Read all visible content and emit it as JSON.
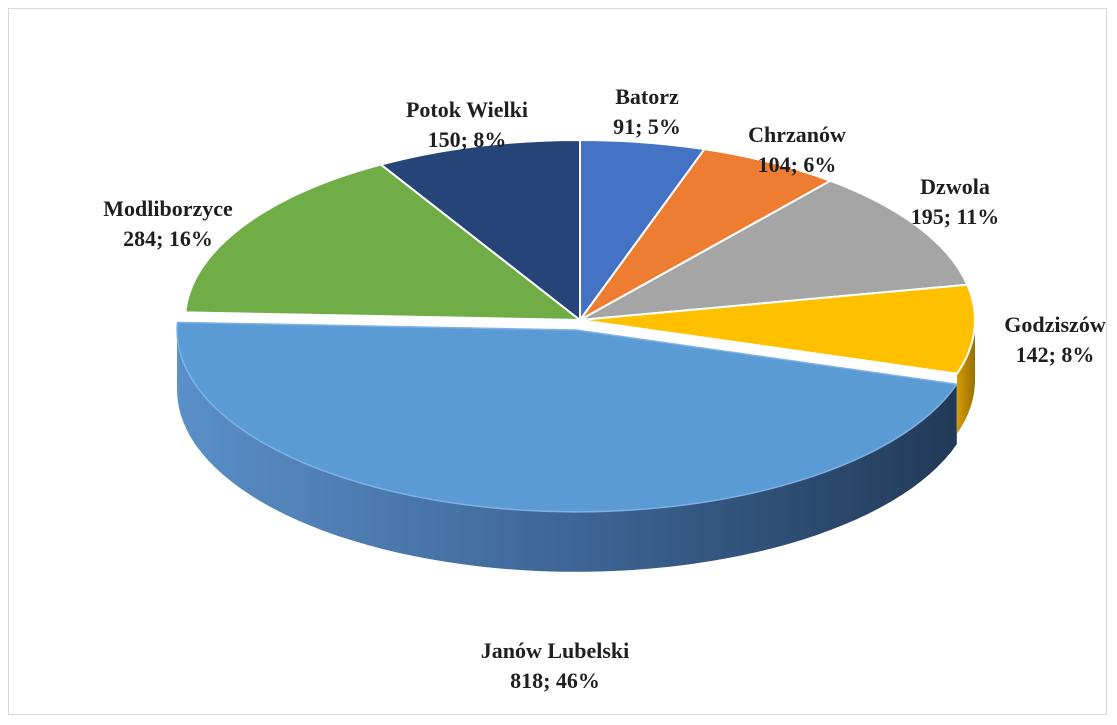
{
  "chart_data": {
    "type": "pie",
    "title": "",
    "categories": [
      "Batorz",
      "Chrzanów",
      "Dzwola",
      "Godziszów",
      "Janów Lubelski",
      "Modliborzyce",
      "Potok Wielki"
    ],
    "values": [
      91,
      104,
      195,
      142,
      818,
      284,
      150
    ],
    "percent_labels": [
      "5%",
      "6%",
      "11%",
      "8%",
      "46%",
      "16%",
      "8%"
    ],
    "colors": [
      "#4472c4",
      "#ed7d31",
      "#a5a5a5",
      "#ffc000",
      "#5b9bd5",
      "#70ad47",
      "#264478"
    ],
    "exploded": "Janów Lubelski",
    "legend": "none",
    "style": "3d"
  }
}
